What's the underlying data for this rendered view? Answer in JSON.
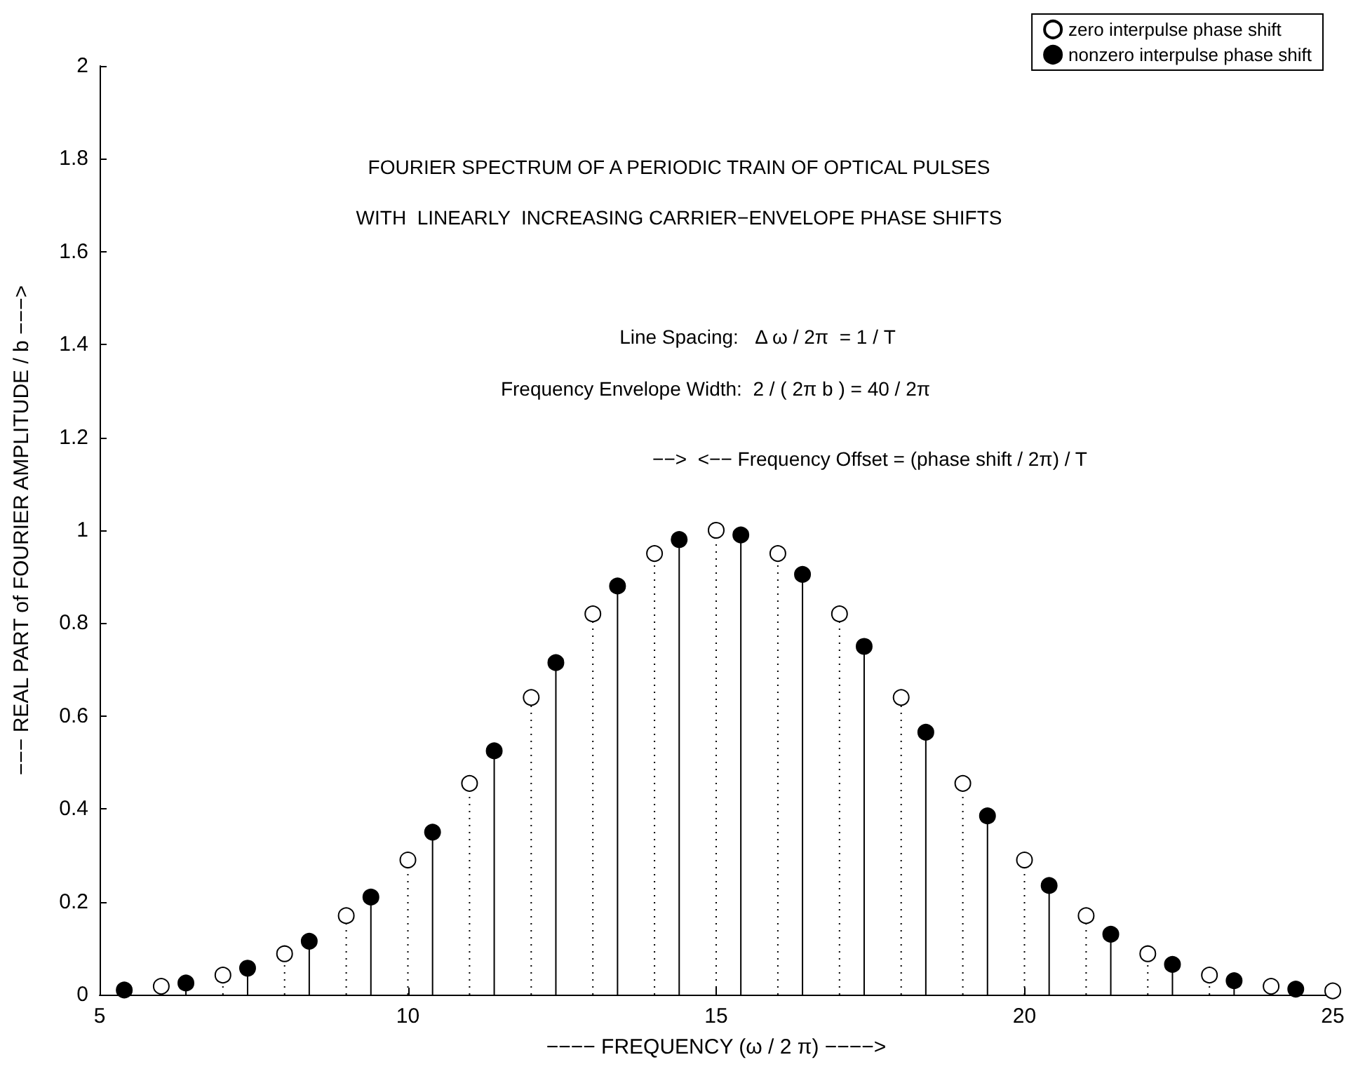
{
  "chart_data": {
    "type": "lollipop",
    "title": "FOURIER SPECTRUM OF A PERIODIC TRAIN OF OPTICAL PULSES",
    "subtitle": "WITH  LINEARLY  INCREASING CARRIER−ENVELOPE PHASE SHIFTS",
    "xlabel": "−−−− FREQUENCY (ω / 2 π) −−−−>",
    "ylabel": "−−− REAL PART of FOURIER AMPLITUDE / b −−−>",
    "annotations": [
      "Line Spacing:   Δ ω / 2π  = 1 / T",
      "Frequency Envelope Width:  2 / ( 2π b ) = 40 / 2π",
      "−−>  <−− Frequency Offset = (phase shift / 2π) / T"
    ],
    "series": [
      {
        "name": "zero interpulse phase shift",
        "color": "#ffffff",
        "line_style": "dotted",
        "x": [
          6,
          7,
          8,
          9,
          10,
          11,
          12,
          13,
          14,
          15,
          16,
          17,
          18,
          19,
          20,
          21,
          22,
          23,
          24,
          25
        ],
        "values": [
          0.018,
          0.042,
          0.088,
          0.17,
          0.29,
          0.455,
          0.64,
          0.82,
          0.95,
          1.0,
          0.95,
          0.82,
          0.64,
          0.455,
          0.29,
          0.17,
          0.088,
          0.042,
          0.018,
          0.008
        ]
      },
      {
        "name": "nonzero interpulse phase shift",
        "color": "#000000",
        "line_style": "solid",
        "x": [
          5.4,
          6.4,
          7.4,
          8.4,
          9.4,
          10.4,
          11.4,
          12.4,
          13.4,
          14.4,
          15.4,
          16.4,
          17.4,
          18.4,
          19.4,
          20.4,
          21.4,
          22.4,
          23.4,
          24.4
        ],
        "values": [
          0.01,
          0.025,
          0.057,
          0.115,
          0.21,
          0.35,
          0.525,
          0.715,
          0.88,
          0.98,
          0.99,
          0.905,
          0.75,
          0.565,
          0.385,
          0.235,
          0.13,
          0.065,
          0.03,
          0.012
        ]
      }
    ],
    "marker": "circle",
    "xlim": [
      5,
      25
    ],
    "xticks": [
      5,
      10,
      15,
      20,
      25
    ],
    "ylim": [
      0,
      2
    ],
    "yticks": [
      0,
      0.2,
      0.4,
      0.6,
      0.8,
      1,
      1.2,
      1.4,
      1.6,
      1.8,
      2
    ],
    "grid": false,
    "legend": "top right"
  }
}
